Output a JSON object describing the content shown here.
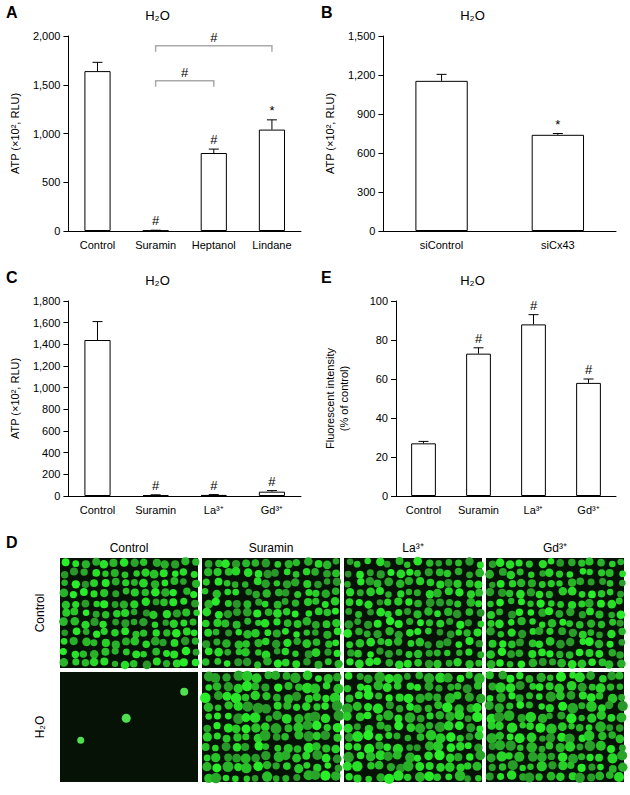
{
  "chart_data": [
    {
      "panel_label": "A",
      "type": "bar",
      "title": "H₂O",
      "y_label": "ATP (×10², RLU)",
      "categories": [
        "Control",
        "Suramin",
        "Heptanol",
        "Lindane"
      ],
      "values": [
        1640,
        5,
        800,
        1040
      ],
      "errors": [
        90,
        3,
        40,
        100
      ],
      "marks": [
        null,
        "#",
        "#",
        "*"
      ],
      "brackets": [
        {
          "from": "Suramin",
          "to": "Heptanol",
          "text": "#"
        },
        {
          "from": "Suramin",
          "to": "Lindane",
          "text": "#"
        }
      ],
      "color": "#ffffff",
      "ylim": [
        0,
        2000
      ],
      "yticks": [
        0,
        500,
        1000,
        1500,
        2000
      ],
      "grid": false
    },
    {
      "panel_label": "B",
      "type": "bar",
      "title": "H₂O",
      "y_label": "ATP (×10², RLU)",
      "categories": [
        "siControl",
        "siCx43"
      ],
      "values": [
        1155,
        740
      ],
      "errors": [
        50,
        10
      ],
      "marks": [
        null,
        "*"
      ],
      "color": "#ffffff",
      "ylim": [
        0,
        1500
      ],
      "yticks": [
        0,
        300,
        600,
        900,
        1200,
        1500
      ],
      "grid": false
    },
    {
      "panel_label": "C",
      "type": "bar",
      "title": "H₂O",
      "y_label": "ATP (×10², RLU)",
      "categories": [
        "Control",
        "Suramin",
        "La³⁺",
        "Gd³⁺"
      ],
      "values": [
        1440,
        8,
        10,
        40
      ],
      "errors": [
        170,
        3,
        3,
        10
      ],
      "marks": [
        null,
        "#",
        "#",
        "#"
      ],
      "color": "#ffffff",
      "ylim": [
        0,
        1800
      ],
      "yticks": [
        0,
        200,
        400,
        600,
        800,
        1000,
        1200,
        1400,
        1600,
        1800
      ],
      "grid": false
    },
    {
      "panel_label": "E",
      "type": "bar",
      "title": "H₂O",
      "y_label": "Fluorescent intensity\n(% of control)",
      "categories": [
        "Control",
        "Suramin",
        "La³⁺",
        "Gd³⁺"
      ],
      "values": [
        27,
        73,
        88,
        58
      ],
      "errors": [
        1,
        3,
        5,
        2
      ],
      "marks": [
        null,
        "#",
        "#",
        "#"
      ],
      "color": "#ffffff",
      "ylim": [
        0,
        100
      ],
      "yticks": [
        0,
        20,
        40,
        60,
        80,
        100
      ],
      "grid": false
    }
  ],
  "image_panel": {
    "panel_label": "D",
    "columns": [
      "Control",
      "Suramin",
      "La³⁺",
      "Gd³⁺"
    ],
    "rows": [
      "Control",
      "H₂O"
    ]
  }
}
